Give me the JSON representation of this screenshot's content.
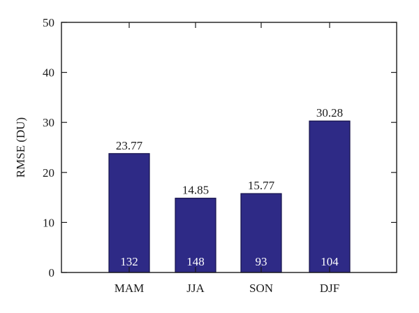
{
  "chart_data": {
    "type": "bar",
    "categories": [
      "MAM",
      "JJA",
      "SON",
      "DJF"
    ],
    "values": [
      23.77,
      14.85,
      15.77,
      30.28
    ],
    "value_labels": [
      "23.77",
      "14.85",
      "15.77",
      "30.28"
    ],
    "count_labels": [
      "132",
      "148",
      "93",
      "104"
    ],
    "ylabel": "RMSE (DU)",
    "ylim": [
      0,
      50
    ],
    "yticks": [
      0,
      10,
      20,
      30,
      40,
      50
    ],
    "grid": false,
    "bar_color": "#2e2a86",
    "bar_edge_color": "#15124a"
  }
}
